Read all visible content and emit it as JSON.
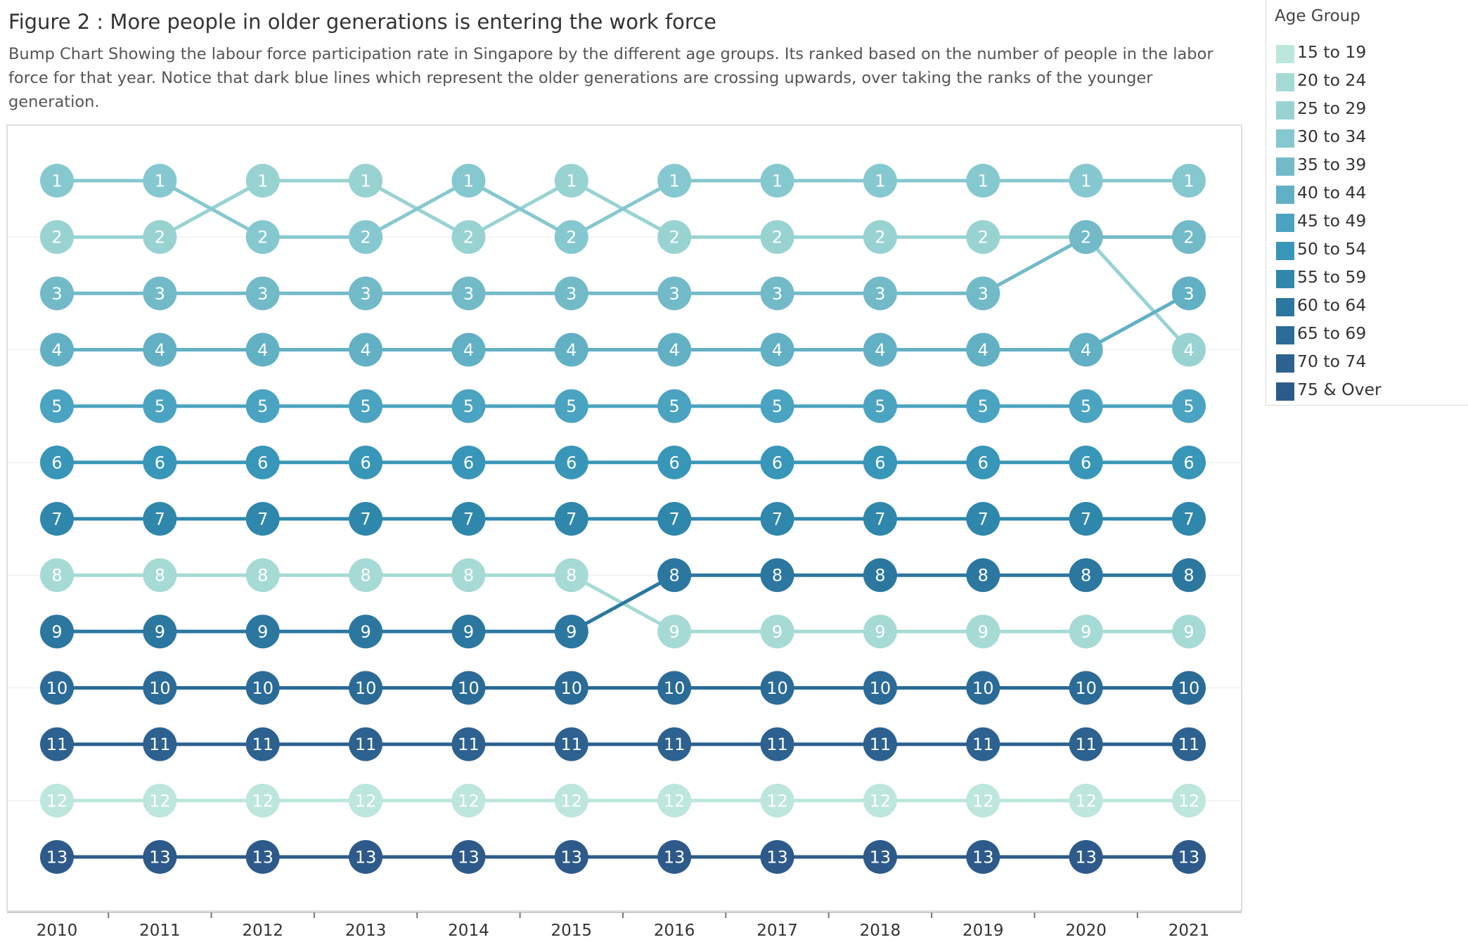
{
  "chart_data": {
    "type": "line",
    "title": "Figure 2 : More people in older generations is entering the work force",
    "subtitle": "Bump Chart Showing the labour force participation rate in Singapore by the different age groups. Its ranked based on the number of people in the labor force for that year. Notice that dark blue lines which represent the older generations are crossing upwards, over taking the ranks of the younger generation.",
    "x": [
      "2010",
      "2011",
      "2012",
      "2013",
      "2014",
      "2015",
      "2016",
      "2017",
      "2018",
      "2019",
      "2020",
      "2021"
    ],
    "ylim": [
      1,
      13
    ],
    "y_reversed": true,
    "grid": true,
    "legend_title": "Age Group",
    "legend_position": "right",
    "series": [
      {
        "name": "15 to 19",
        "color": "#bde6dc",
        "values": [
          12,
          12,
          12,
          12,
          12,
          12,
          12,
          12,
          12,
          12,
          12,
          12
        ]
      },
      {
        "name": "20 to 24",
        "color": "#a6dad5",
        "values": [
          8,
          8,
          8,
          8,
          8,
          8,
          9,
          9,
          9,
          9,
          9,
          9
        ]
      },
      {
        "name": "25 to 29",
        "color": "#98d3d2",
        "values": [
          2,
          2,
          1,
          1,
          2,
          1,
          2,
          2,
          2,
          2,
          2,
          4
        ]
      },
      {
        "name": "30 to 34",
        "color": "#86c8cf",
        "values": [
          1,
          1,
          2,
          2,
          1,
          2,
          1,
          1,
          1,
          1,
          1,
          1
        ]
      },
      {
        "name": "35 to 39",
        "color": "#72bac8",
        "values": [
          3,
          3,
          3,
          3,
          3,
          3,
          3,
          3,
          3,
          3,
          2,
          2
        ]
      },
      {
        "name": "40 to 44",
        "color": "#62b0c4",
        "values": [
          4,
          4,
          4,
          4,
          4,
          4,
          4,
          4,
          4,
          4,
          4,
          3
        ]
      },
      {
        "name": "45 to 49",
        "color": "#4aa3c0",
        "values": [
          5,
          5,
          5,
          5,
          5,
          5,
          5,
          5,
          5,
          5,
          5,
          5
        ]
      },
      {
        "name": "50 to 54",
        "color": "#3896b8",
        "values": [
          6,
          6,
          6,
          6,
          6,
          6,
          6,
          6,
          6,
          6,
          6,
          6
        ]
      },
      {
        "name": "55 to 59",
        "color": "#2f87ac",
        "values": [
          7,
          7,
          7,
          7,
          7,
          7,
          7,
          7,
          7,
          7,
          7,
          7
        ]
      },
      {
        "name": "60 to 64",
        "color": "#2b77a0",
        "values": [
          9,
          9,
          9,
          9,
          9,
          9,
          8,
          8,
          8,
          8,
          8,
          8
        ]
      },
      {
        "name": "65 to 69",
        "color": "#2b6b97",
        "values": [
          10,
          10,
          10,
          10,
          10,
          10,
          10,
          10,
          10,
          10,
          10,
          10
        ]
      },
      {
        "name": "70 to 74",
        "color": "#2c6190",
        "values": [
          11,
          11,
          11,
          11,
          11,
          11,
          11,
          11,
          11,
          11,
          11,
          11
        ]
      },
      {
        "name": "75 & Over",
        "color": "#2d5a8a",
        "values": [
          13,
          13,
          13,
          13,
          13,
          13,
          13,
          13,
          13,
          13,
          13,
          13
        ]
      }
    ]
  }
}
